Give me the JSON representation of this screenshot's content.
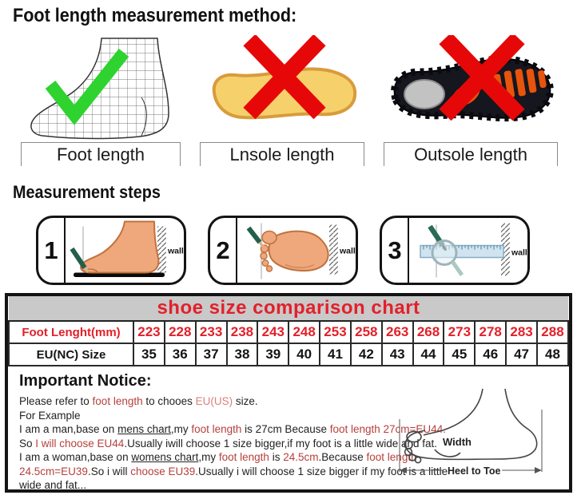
{
  "headings": {
    "method_title": "Foot length measurement method:",
    "steps_title": "Measurement steps"
  },
  "method_items": [
    {
      "label": "Foot length",
      "mark": "green-check"
    },
    {
      "label": "Lnsole length",
      "mark": "red-cross"
    },
    {
      "label": "Outsole length",
      "mark": "red-cross"
    }
  ],
  "steps": [
    {
      "number": "1",
      "wall_label": "wall"
    },
    {
      "number": "2",
      "wall_label": "wall"
    },
    {
      "number": "3",
      "wall_label": "wall"
    }
  ],
  "size_chart": {
    "title": "shoe size comparison chart",
    "row1_header": "Foot Lenght(mm)",
    "row2_header": "EU(NC) Size",
    "foot_lengths_mm": [
      "223",
      "228",
      "233",
      "238",
      "243",
      "248",
      "253",
      "258",
      "263",
      "268",
      "273",
      "278",
      "283",
      "288"
    ],
    "eu_sizes": [
      "35",
      "36",
      "37",
      "38",
      "39",
      "40",
      "41",
      "42",
      "43",
      "44",
      "45",
      "46",
      "47",
      "48"
    ]
  },
  "notice": {
    "title": "Important Notice:",
    "lines": [
      [
        {
          "t": "Please refer to "
        },
        {
          "t": "foot length",
          "red": true
        },
        {
          "t": " to chooes "
        },
        {
          "t": "EU(US)",
          "lightred": true
        },
        {
          "t": " size."
        }
      ],
      [
        {
          "t": "For Example"
        }
      ],
      [
        {
          "t": "I am a man,base on "
        },
        {
          "t": "mens chart",
          "u": true
        },
        {
          "t": ",my "
        },
        {
          "t": "foot length",
          "red": true
        },
        {
          "t": " is 27cm Because "
        },
        {
          "t": "foot length 27cm=EU44.",
          "red": true
        }
      ],
      [
        {
          "t": "So "
        },
        {
          "t": "I will choose EU44",
          "red": true
        },
        {
          "t": ".Usually iwill choose 1 size bigger,if my foot is a little wide and fat."
        }
      ],
      [
        {
          "t": "I am a woman,base on "
        },
        {
          "t": "womens chart",
          "u": true
        },
        {
          "t": ",my "
        },
        {
          "t": "foot length",
          "red": true
        },
        {
          "t": " is "
        },
        {
          "t": "24.5cm",
          "red": true
        },
        {
          "t": ".Because "
        },
        {
          "t": "foot length",
          "red": true
        }
      ],
      [
        {
          "t": "24.5cm=EU39",
          "red": true
        },
        {
          "t": ".So i will "
        },
        {
          "t": "choose EU39",
          "red": true
        },
        {
          "t": ".Usually i will choose 1 size bigger if my foot is a little"
        }
      ],
      [
        {
          "t": "wide and fat..."
        }
      ]
    ],
    "diagram": {
      "width_label": "Width",
      "heel_to_toe_label": "Heel to Toe"
    }
  },
  "colors": {
    "check_green": "#2fd32f",
    "cross_red": "#e60808",
    "table_red": "#e3202a",
    "notice_red": "#b5403c",
    "title_band_gray": "#c9c9c9",
    "insole_yellow": "#f6d16b",
    "skin_tone": "#efa87b"
  }
}
